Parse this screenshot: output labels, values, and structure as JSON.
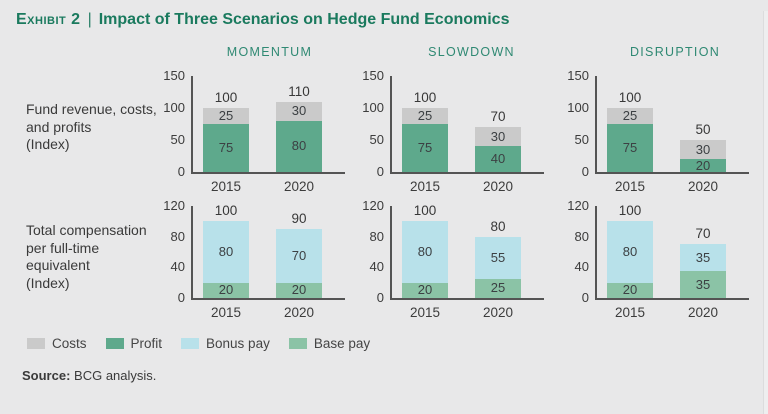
{
  "page": {
    "title_prefix": "Exhibit 2",
    "title_separator": "|",
    "title": "Impact of Three Scenarios on Hedge Fund Economics",
    "source_label": "Source:",
    "source_text": "BCG analysis."
  },
  "scenario_headers": [
    "MOMENTUM",
    "SLOWDOWN",
    "DISRUPTION"
  ],
  "rows": [
    {
      "label_lines": [
        "Fund revenue, costs,",
        "and profits",
        "(Index)"
      ]
    },
    {
      "label_lines": [
        "Total compensation",
        "per full-time equivalent",
        "(Index)"
      ]
    }
  ],
  "legend": [
    {
      "label": "Costs",
      "color": "#cacaca"
    },
    {
      "label": "Profit",
      "color": "#5ea98c"
    },
    {
      "label": "Bonus pay",
      "color": "#b8e1ea"
    },
    {
      "label": "Base pay",
      "color": "#8bc3a6"
    }
  ],
  "colors": {
    "title_green": "#1a7a5e",
    "header_teal": "#2f8973",
    "axis": "#545454",
    "background": "#e8e8e9"
  },
  "chart_data": [
    {
      "type": "bar",
      "row": "Fund revenue, costs, and profits (Index)",
      "scenario": "MOMENTUM",
      "categories": [
        "2015",
        "2020"
      ],
      "ymax": 150,
      "yticks": [
        150,
        100,
        50,
        0
      ],
      "grid": false,
      "bars": [
        {
          "category": "2015",
          "total": 100,
          "segments": [
            {
              "name": "Costs",
              "value": 25
            },
            {
              "name": "Profit",
              "value": 75
            }
          ]
        },
        {
          "category": "2020",
          "total": 110,
          "segments": [
            {
              "name": "Costs",
              "value": 30
            },
            {
              "name": "Profit",
              "value": 80
            }
          ]
        }
      ]
    },
    {
      "type": "bar",
      "row": "Fund revenue, costs, and profits (Index)",
      "scenario": "SLOWDOWN",
      "categories": [
        "2015",
        "2020"
      ],
      "ymax": 150,
      "yticks": [
        150,
        100,
        50,
        0
      ],
      "grid": false,
      "bars": [
        {
          "category": "2015",
          "total": 100,
          "segments": [
            {
              "name": "Costs",
              "value": 25
            },
            {
              "name": "Profit",
              "value": 75
            }
          ]
        },
        {
          "category": "2020",
          "total": 70,
          "segments": [
            {
              "name": "Costs",
              "value": 30
            },
            {
              "name": "Profit",
              "value": 40
            }
          ]
        }
      ]
    },
    {
      "type": "bar",
      "row": "Fund revenue, costs, and profits (Index)",
      "scenario": "DISRUPTION",
      "categories": [
        "2015",
        "2020"
      ],
      "ymax": 150,
      "yticks": [
        150,
        100,
        50,
        0
      ],
      "grid": false,
      "bars": [
        {
          "category": "2015",
          "total": 100,
          "segments": [
            {
              "name": "Costs",
              "value": 25
            },
            {
              "name": "Profit",
              "value": 75
            }
          ]
        },
        {
          "category": "2020",
          "total": 50,
          "segments": [
            {
              "name": "Costs",
              "value": 30
            },
            {
              "name": "Profit",
              "value": 20
            }
          ]
        }
      ]
    },
    {
      "type": "bar",
      "row": "Total compensation per full-time equivalent (Index)",
      "scenario": "MOMENTUM",
      "categories": [
        "2015",
        "2020"
      ],
      "ymax": 120,
      "yticks": [
        120,
        80,
        40,
        0
      ],
      "grid": false,
      "bars": [
        {
          "category": "2015",
          "total": 100,
          "segments": [
            {
              "name": "Bonus pay",
              "value": 80
            },
            {
              "name": "Base pay",
              "value": 20
            }
          ]
        },
        {
          "category": "2020",
          "total": 90,
          "segments": [
            {
              "name": "Bonus pay",
              "value": 70
            },
            {
              "name": "Base pay",
              "value": 20
            }
          ]
        }
      ]
    },
    {
      "type": "bar",
      "row": "Total compensation per full-time equivalent (Index)",
      "scenario": "SLOWDOWN",
      "categories": [
        "2015",
        "2020"
      ],
      "ymax": 120,
      "yticks": [
        120,
        80,
        40,
        0
      ],
      "grid": false,
      "bars": [
        {
          "category": "2015",
          "total": 100,
          "segments": [
            {
              "name": "Bonus pay",
              "value": 80
            },
            {
              "name": "Base pay",
              "value": 20
            }
          ]
        },
        {
          "category": "2020",
          "total": 80,
          "segments": [
            {
              "name": "Bonus pay",
              "value": 55
            },
            {
              "name": "Base pay",
              "value": 25
            }
          ]
        }
      ]
    },
    {
      "type": "bar",
      "row": "Total compensation per full-time equivalent (Index)",
      "scenario": "DISRUPTION",
      "categories": [
        "2015",
        "2020"
      ],
      "ymax": 120,
      "yticks": [
        120,
        80,
        40,
        0
      ],
      "grid": false,
      "bars": [
        {
          "category": "2015",
          "total": 100,
          "segments": [
            {
              "name": "Bonus pay",
              "value": 80
            },
            {
              "name": "Base pay",
              "value": 20
            }
          ]
        },
        {
          "category": "2020",
          "total": 70,
          "segments": [
            {
              "name": "Bonus pay",
              "value": 35
            },
            {
              "name": "Base pay",
              "value": 35
            }
          ]
        }
      ]
    }
  ]
}
